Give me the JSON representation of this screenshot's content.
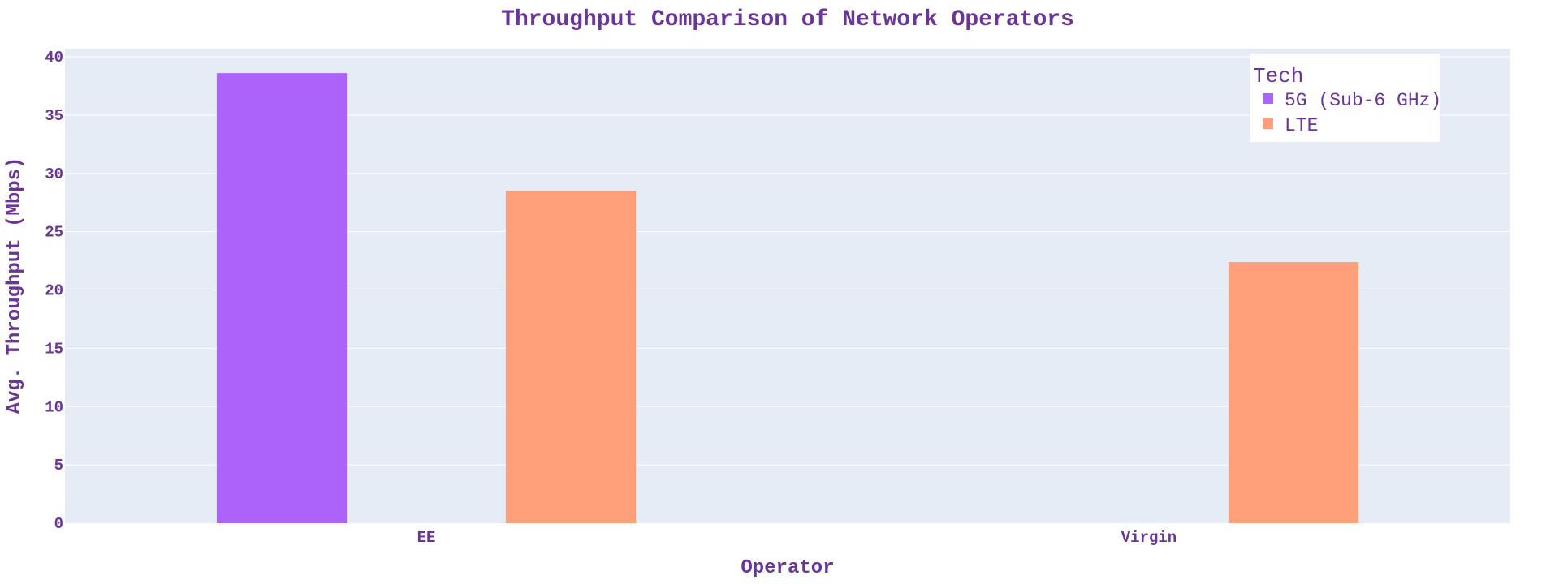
{
  "chart_data": {
    "type": "bar",
    "title": "Throughput Comparison of Network Operators",
    "xlabel": "Operator",
    "ylabel": "Avg. Throughput (Mbps)",
    "categories": [
      "EE",
      "Virgin"
    ],
    "ylim": [
      0,
      40
    ],
    "yticks": [
      0,
      5,
      10,
      15,
      20,
      25,
      30,
      35,
      40
    ],
    "grid": true,
    "legend": {
      "title": "Tech",
      "placement": "top-right"
    },
    "series": [
      {
        "name": "5G (Sub-6 GHz)",
        "color": "#ab63fa",
        "values": [
          38.6,
          null
        ]
      },
      {
        "name": "LTE",
        "color": "#ffa07a",
        "values": [
          28.5,
          22.4
        ]
      }
    ],
    "colors": {
      "plot_background": "#e5ecf6",
      "gridline": "#ffffff",
      "text": "#6a3596"
    }
  }
}
